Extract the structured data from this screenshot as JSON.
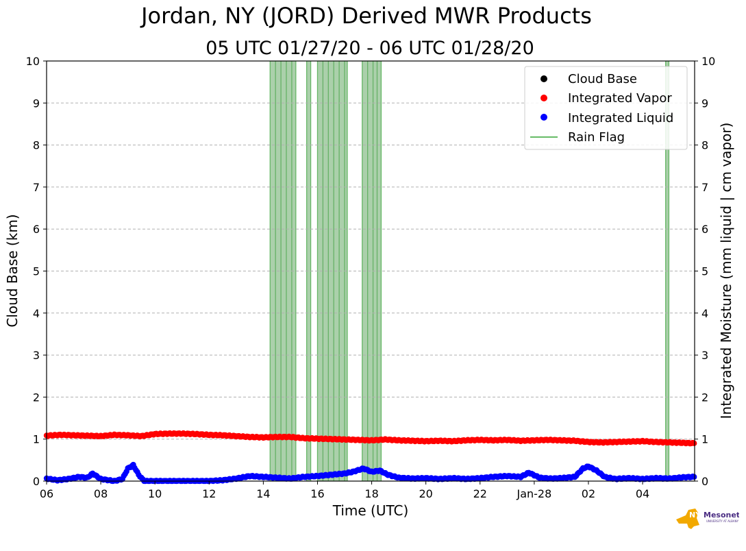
{
  "title": "Jordan, NY (JORD) Derived MWR Products",
  "subtitle": "05 UTC 01/27/20 - 06 UTC 01/28/20",
  "chart_data": {
    "type": "scatter",
    "xlabel": "Time (UTC)",
    "ylabel_left": "Cloud Base (km)",
    "ylabel_right": "Integrated Moisture (mm liquid | cm vapor)",
    "xlim": [
      "2020-01-27 06:00",
      "2020-01-28 05:55"
    ],
    "ylim": [
      0,
      10
    ],
    "ylim_right": [
      0,
      10
    ],
    "x_tick_labels": [
      "06",
      "08",
      "10",
      "12",
      "14",
      "16",
      "18",
      "20",
      "22",
      "Jan-28",
      "02",
      "04"
    ],
    "y_ticks": [
      0,
      1,
      2,
      3,
      4,
      5,
      6,
      7,
      8,
      9,
      10
    ],
    "grid": "horizontal dashed",
    "legend_position": "top-right",
    "legend": [
      {
        "label": "Cloud Base",
        "marker": "dot",
        "color": "#000000"
      },
      {
        "label": "Integrated Vapor",
        "marker": "dot",
        "color": "#ff0000"
      },
      {
        "label": "Integrated Liquid",
        "marker": "dot",
        "color": "#0000ff"
      },
      {
        "label": "Rain Flag",
        "marker": "line",
        "color": "#66bb66"
      }
    ],
    "series": [
      {
        "name": "Integrated Vapor",
        "color": "#ff0000",
        "x_hours": [
          6.0,
          6.5,
          7.0,
          7.5,
          8.0,
          8.5,
          9.0,
          9.5,
          10.0,
          10.5,
          11.0,
          11.5,
          12.0,
          12.5,
          13.0,
          13.5,
          14.0,
          14.5,
          15.0,
          15.5,
          16.0,
          16.5,
          17.0,
          17.5,
          18.0,
          18.5,
          19.0,
          19.5,
          20.0,
          20.5,
          21.0,
          21.5,
          22.0,
          22.5,
          23.0,
          23.5,
          24.0,
          24.5,
          25.0,
          25.5,
          26.0,
          26.5,
          27.0,
          27.5,
          28.0,
          28.5,
          29.0,
          29.5,
          29.9
        ],
        "values": [
          1.08,
          1.1,
          1.09,
          1.08,
          1.07,
          1.1,
          1.09,
          1.07,
          1.12,
          1.13,
          1.13,
          1.12,
          1.1,
          1.09,
          1.07,
          1.05,
          1.04,
          1.05,
          1.05,
          1.02,
          1.01,
          1.0,
          0.99,
          0.98,
          0.97,
          0.99,
          0.97,
          0.96,
          0.95,
          0.96,
          0.95,
          0.97,
          0.98,
          0.97,
          0.98,
          0.96,
          0.97,
          0.98,
          0.97,
          0.96,
          0.93,
          0.92,
          0.93,
          0.94,
          0.95,
          0.93,
          0.92,
          0.91,
          0.9
        ]
      },
      {
        "name": "Integrated Liquid",
        "color": "#0000ff",
        "x_hours": [
          6.0,
          6.4,
          6.8,
          7.2,
          7.5,
          7.7,
          8.0,
          8.5,
          8.8,
          9.0,
          9.2,
          9.4,
          9.6,
          10.0,
          11.0,
          12.0,
          12.5,
          13.0,
          13.5,
          14.0,
          14.5,
          15.0,
          15.5,
          16.0,
          16.5,
          17.0,
          17.3,
          17.7,
          18.0,
          18.3,
          18.6,
          19.0,
          19.5,
          20.0,
          20.5,
          21.0,
          21.5,
          22.0,
          22.5,
          23.0,
          23.5,
          23.8,
          24.2,
          24.6,
          25.0,
          25.5,
          25.8,
          26.0,
          26.3,
          26.6,
          27.0,
          27.5,
          28.0,
          28.5,
          29.0,
          29.5,
          29.9
        ],
        "values": [
          0.06,
          0.02,
          0.05,
          0.1,
          0.08,
          0.18,
          0.05,
          0.0,
          0.05,
          0.3,
          0.38,
          0.15,
          0.0,
          0.0,
          0.0,
          0.0,
          0.02,
          0.06,
          0.12,
          0.1,
          0.08,
          0.06,
          0.1,
          0.12,
          0.15,
          0.18,
          0.22,
          0.3,
          0.22,
          0.25,
          0.15,
          0.08,
          0.06,
          0.07,
          0.05,
          0.07,
          0.05,
          0.07,
          0.1,
          0.12,
          0.1,
          0.2,
          0.08,
          0.06,
          0.07,
          0.1,
          0.3,
          0.35,
          0.25,
          0.1,
          0.05,
          0.07,
          0.05,
          0.07,
          0.06,
          0.09,
          0.1
        ]
      },
      {
        "name": "Cloud Base",
        "color": "#000000",
        "x_hours": [],
        "values": []
      }
    ],
    "rain_flag_hours": [
      14.25,
      14.45,
      14.65,
      14.85,
      15.05,
      15.2,
      15.6,
      15.75,
      16.0,
      16.2,
      16.4,
      16.6,
      16.8,
      17.0,
      17.1,
      17.65,
      17.85,
      18.05,
      18.2,
      18.35,
      28.85,
      28.97
    ]
  }
}
